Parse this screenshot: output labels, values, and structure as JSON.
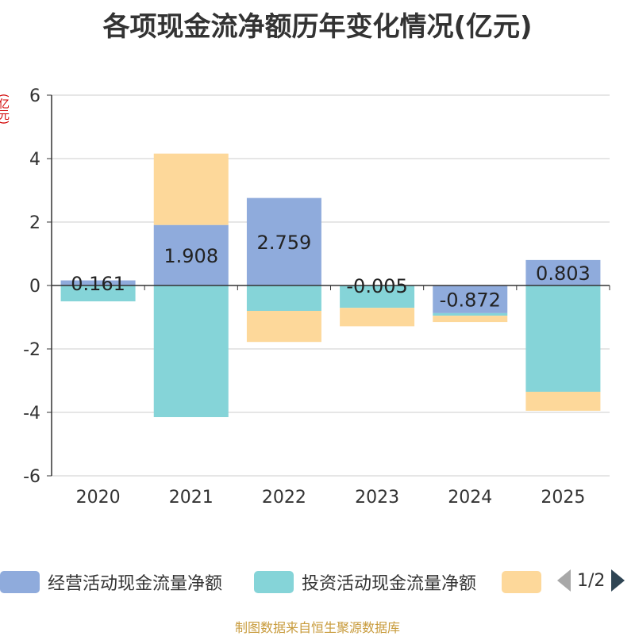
{
  "chart_data": {
    "type": "bar",
    "title": "各项现金流净额历年变化情况(亿元)",
    "ylabel": "(亿元)",
    "categories": [
      "2020",
      "2021",
      "2022",
      "2023",
      "2024",
      "2025"
    ],
    "ylim": [
      -6,
      6
    ],
    "yticks": [
      6,
      4,
      2,
      0,
      -2,
      -4,
      -6
    ],
    "stacked": true,
    "grid": true,
    "legend_position": "bottom",
    "series": [
      {
        "name": "经营活动现金流量净额",
        "values": [
          0.161,
          1.908,
          2.759,
          -0.005,
          -0.872,
          0.803
        ],
        "color": "#8fabdc",
        "labels": [
          "0.161",
          "1.908",
          "2.759",
          "-0.005",
          "-0.872",
          "0.803"
        ]
      },
      {
        "name": "投资活动现金流量净额",
        "values": [
          -0.5,
          -4.15,
          -0.8,
          -0.7,
          -0.08,
          -3.35
        ],
        "color": "#85d4d8"
      },
      {
        "name": "",
        "values": [
          0,
          2.25,
          -0.98,
          -0.58,
          -0.2,
          -0.6
        ],
        "color": "#fdd89a"
      }
    ]
  },
  "legend": {
    "items": [
      {
        "label": "经营活动现金流量净额",
        "color": "#8fabdc"
      },
      {
        "label": "投资活动现金流量净额",
        "color": "#85d4d8"
      },
      {
        "label": "",
        "color": "#fdd89a"
      }
    ],
    "page": "1/2"
  },
  "footer": {
    "source": "制图数据来自恒生聚源数据库"
  }
}
